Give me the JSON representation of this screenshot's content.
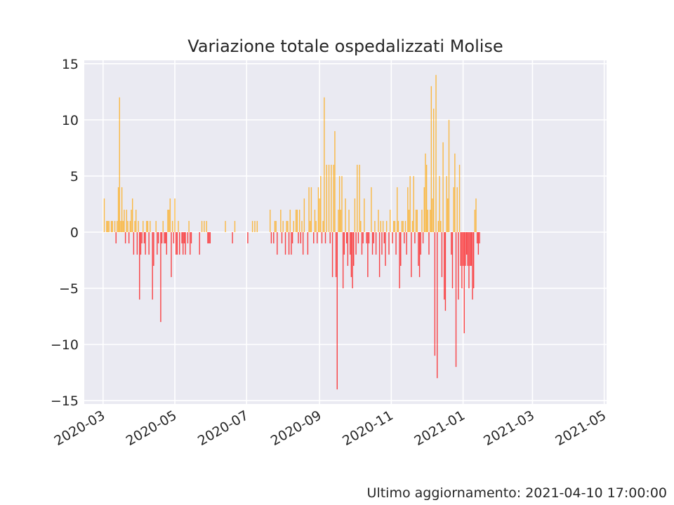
{
  "chart_data": {
    "type": "bar",
    "title": "Variazione totale ospedalizzati Molise",
    "xlabel": "",
    "ylabel": "",
    "ylim": [
      -15.3,
      15.3
    ],
    "xlim": [
      "2020-02-14",
      "2021-05-03"
    ],
    "x_ticks": [
      "2020-03",
      "2020-05",
      "2020-07",
      "2020-09",
      "2020-11",
      "2021-01",
      "2021-03",
      "2021-05"
    ],
    "y_ticks": [
      -15,
      -10,
      -5,
      0,
      5,
      10,
      15
    ],
    "grid": true,
    "colors": {
      "positive": "#ffa500",
      "negative": "#ff0000",
      "background": "#eaeaf2",
      "grid": "#ffffff"
    },
    "start_date": "2020-03-02",
    "values": [
      3,
      0,
      1,
      1,
      1,
      0,
      1,
      1,
      0,
      1,
      -1,
      1,
      4,
      12,
      1,
      4,
      1,
      2,
      -1,
      2,
      1,
      -1,
      1,
      2,
      3,
      -2,
      1,
      2,
      -2,
      1,
      -6,
      -2,
      -1,
      1,
      -1,
      -2,
      1,
      1,
      -2,
      1,
      0,
      -6,
      -3,
      0,
      1,
      -2,
      -1,
      0,
      -8,
      -1,
      1,
      -1,
      -1,
      -2,
      2,
      2,
      3,
      -4,
      1,
      -1,
      3,
      -2,
      -2,
      1,
      -2,
      0,
      -1,
      -2,
      -1,
      -2,
      0,
      -1,
      1,
      -2,
      -1,
      0,
      0,
      0,
      0,
      0,
      0,
      -2,
      0,
      1,
      0,
      1,
      0,
      1,
      -1,
      -1,
      -1,
      0,
      0,
      0,
      0,
      0,
      0,
      0,
      0,
      0,
      0,
      0,
      0,
      1,
      0,
      0,
      0,
      0,
      0,
      -1,
      0,
      1,
      0,
      0,
      0,
      0,
      0,
      0,
      0,
      0,
      0,
      0,
      -1,
      0,
      0,
      0,
      1,
      0,
      1,
      0,
      1,
      0,
      0,
      0,
      0,
      0,
      0,
      0,
      0,
      0,
      0,
      2,
      -1,
      0,
      -1,
      1,
      1,
      -2,
      0,
      0,
      2,
      -1,
      1,
      0,
      -2,
      1,
      1,
      -2,
      2,
      -2,
      -1,
      1,
      0,
      2,
      2,
      -1,
      2,
      -1,
      1,
      -2,
      3,
      0,
      0,
      -2,
      4,
      1,
      4,
      0,
      -1,
      2,
      1,
      -1,
      4,
      3,
      5,
      -1,
      1,
      12,
      -1,
      6,
      0,
      6,
      -1,
      6,
      -4,
      6,
      9,
      -4,
      -14,
      2,
      5,
      2,
      5,
      -5,
      -2,
      3,
      -1,
      -3,
      2,
      -2,
      -4,
      -5,
      -3,
      3,
      -2,
      6,
      -1,
      6,
      1,
      -2,
      -1,
      3,
      0,
      -1,
      -4,
      -1,
      0,
      4,
      -2,
      -1,
      1,
      -2,
      0,
      2,
      -4,
      1,
      -2,
      1,
      -1,
      -3,
      1,
      0,
      -2,
      2,
      0,
      -1,
      1,
      1,
      -2,
      4,
      1,
      -5,
      -3,
      1,
      1,
      -1,
      1,
      -2,
      4,
      2,
      5,
      -4,
      1,
      5,
      -1,
      2,
      2,
      -3,
      -4,
      -2,
      2,
      -1,
      4,
      7,
      6,
      2,
      -2,
      2,
      13,
      3,
      11,
      -11,
      14,
      -13,
      1,
      5,
      1,
      -4,
      8,
      -6,
      -7,
      5,
      3,
      10,
      0,
      -2,
      -5,
      4,
      7,
      -12,
      4,
      -6,
      6,
      -3,
      -5,
      -3,
      -9,
      -3,
      -2,
      -3,
      -5,
      -3,
      -3,
      -6,
      -5,
      2,
      3,
      -1,
      -2,
      -1
    ]
  },
  "footer": {
    "last_update": "Ultimo aggiornamento: 2021-04-10 17:00:00"
  }
}
